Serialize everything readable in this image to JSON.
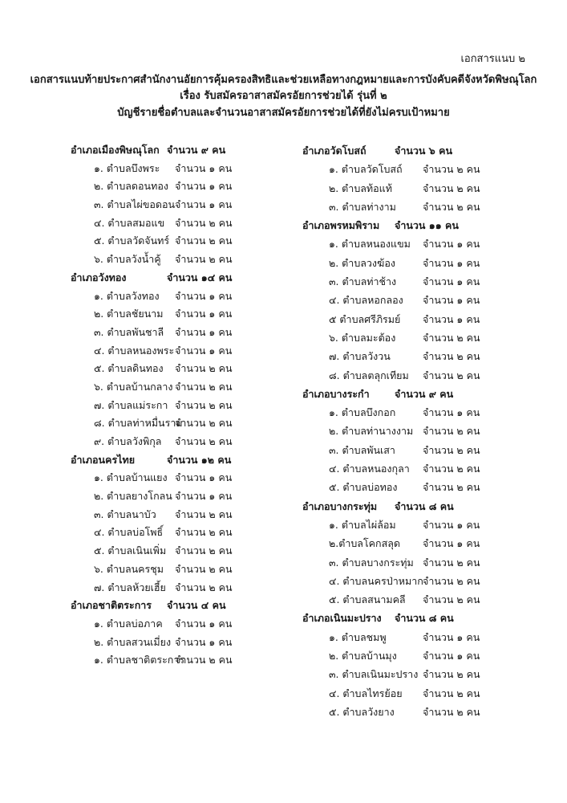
{
  "annex_label": "เอกสารแนบ ๒",
  "title_lines": [
    "เอกสารแนบท้ายประกาศสำนักงานอัยการคุ้มครองสิทธิและช่วยเหลือทางกฎหมายและการบังคับคดีจังหวัดพิษณุโลก",
    "เรื่อง รับสมัครอาสาสมัครอัยการช่วยได้ รุ่นที่ ๒",
    "บัญชีรายชื่อตำบลและจำนวนอาสาสมัครอัยการช่วยได้ที่ยังไม่ครบเป้าหมาย"
  ],
  "columns": [
    [
      {
        "district": "อำเภอเมืองพิษณุโลก",
        "count": "จำนวน ๙ คน",
        "subdistricts": [
          {
            "name": "๑. ตำบลบึงพระ",
            "count": "จำนวน ๑ คน"
          },
          {
            "name": "๒. ตำบลดอนทอง",
            "count": "จำนวน ๑ คน"
          },
          {
            "name": "๓. ตำบลไผ่ขอดอน",
            "count": "จำนวน ๑ คน"
          },
          {
            "name": "๔. ตำบลสมอแข",
            "count": "จำนวน ๒ คน"
          },
          {
            "name": "๕. ตำบลวัดจันทร์",
            "count": "จำนวน ๒ คน"
          },
          {
            "name": "๖. ตำบลวังน้ำคู้",
            "count": "จำนวน ๒ คน"
          }
        ]
      },
      {
        "district": "อำเภอวังทอง",
        "count": "จำนวน ๑๔ คน",
        "subdistricts": [
          {
            "name": "๑. ตำบลวังทอง",
            "count": "จำนวน ๑ คน"
          },
          {
            "name": "๒. ตำบลชัยนาม",
            "count": "จำนวน ๑ คน"
          },
          {
            "name": "๓. ตำบลพันชาลี",
            "count": "จำนวน ๑ คน"
          },
          {
            "name": "๔. ตำบลหนองพระ",
            "count": "จำนวน ๑ คน"
          },
          {
            "name": "๕. ตำบลดินทอง",
            "count": "จำนวน ๒ คน"
          },
          {
            "name": "๖. ตำบลบ้านกลาง",
            "count": "จำนวน ๒ คน"
          },
          {
            "name": "๗. ตำบลแม่ระกา",
            "count": "จำนวน ๒ คน"
          },
          {
            "name": "๘. ตำบลท่าหมื่นราม",
            "count": "จำนวน ๒ คน"
          },
          {
            "name": "๙. ตำบลวังพิกุล",
            "count": "จำนวน ๒ คน"
          }
        ]
      },
      {
        "district": "อำเภอนครไทย",
        "count": "จำนวน ๑๒ คน",
        "subdistricts": [
          {
            "name": "๑. ตำบลบ้านแยง",
            "count": "จำนวน ๑ คน"
          },
          {
            "name": "๒. ตำบลยางโกลน",
            "count": "จำนวน ๑ คน"
          },
          {
            "name": "๓. ตำบลนาบัว",
            "count": "จำนวน ๒ คน"
          },
          {
            "name": "๔. ตำบลบ่อโพธิ์",
            "count": "จำนวน ๒ คน"
          },
          {
            "name": "๕. ตำบลเนินเพิ่ม",
            "count": "จำนวน ๒ คน"
          },
          {
            "name": "๖. ตำบลนครชุม",
            "count": "จำนวน ๒ คน"
          },
          {
            "name": "๗. ตำบลห้วยเฮี้ย",
            "count": "จำนวน ๒ คน"
          }
        ]
      },
      {
        "district": "อำเภอชาติตระการ",
        "count": "จำนวน ๔ คน",
        "subdistricts": [
          {
            "name": "๑. ตำบลบ่อภาค",
            "count": "จำนวน ๑ คน"
          },
          {
            "name": "๒. ตำบลสวนเมี่ยง",
            "count": "จำนวน ๑ คน"
          },
          {
            "name": "๑. ตำบลชาติตระการ",
            "count": "จำนวน ๒ คน"
          }
        ]
      }
    ],
    [
      {
        "district": "อำเภอวัดโบสถ์",
        "count": "จำนวน ๖ คน",
        "subdistricts": [
          {
            "name": "๑. ตำบลวัดโบสถ์",
            "count": "จำนวน ๒ คน"
          },
          {
            "name": "๒. ตำบลท้อแท้",
            "count": "จำนวน ๒ คน"
          },
          {
            "name": "๓. ตำบลท่างาม",
            "count": "จำนวน ๒ คน"
          }
        ]
      },
      {
        "district": "อำเภอพรหมพิราม",
        "count": "จำนวน ๑๑ คน",
        "subdistricts": [
          {
            "name": "๑. ตำบลหนองแขม",
            "count": "จำนวน ๑ คน"
          },
          {
            "name": "๒. ตำบลวงฆ้อง",
            "count": "จำนวน ๑ คน"
          },
          {
            "name": "๓. ตำบลท่าช้าง",
            "count": "จำนวน ๑ คน"
          },
          {
            "name": "๔. ตำบลหอกลอง",
            "count": "จำนวน ๑ คน"
          },
          {
            "name": "๕ ตำบลศรีภิรมย์",
            "count": "จำนวน ๑ คน"
          },
          {
            "name": "๖. ตำบลมะต้อง",
            "count": "จำนวน ๒ คน"
          },
          {
            "name": "๗. ตำบลวังวน",
            "count": "จำนวน ๒ คน"
          },
          {
            "name": "๘. ตำบลตลุกเทียม",
            "count": "จำนวน ๒ คน"
          }
        ]
      },
      {
        "district": "อำเภอบางระกำ",
        "count": "จำนวน ๙ คน",
        "subdistricts": [
          {
            "name": "๑. ตำบลบึงกอก",
            "count": "จำนวน ๑ คน"
          },
          {
            "name": "๒. ตำบลท่านางงาม",
            "count": "จำนวน ๒ คน"
          },
          {
            "name": "๓. ตำบลพันเสา",
            "count": "จำนวน ๒ คน"
          },
          {
            "name": "๔. ตำบลหนองกุลา",
            "count": "จำนวน ๒ คน"
          },
          {
            "name": "๕. ตำบลบ่อทอง",
            "count": "จำนวน ๒ คน"
          }
        ]
      },
      {
        "district": "อำเภอบางกระทุ่ม",
        "count": "จำนวน ๘ คน",
        "subdistricts": [
          {
            "name": "๑. ตำบลไผ่ล้อม",
            "count": "จำนวน ๑ คน"
          },
          {
            "name": "๒.ตำบลโคกสลุด",
            "count": "จำนวน ๑ คน"
          },
          {
            "name": "๓. ตำบลบางกระทุ่ม",
            "count": "จำนวน ๒ คน"
          },
          {
            "name": "๔. ตำบลนครป่าหมาก",
            "count": "จำนวน ๒ คน"
          },
          {
            "name": "๕. ตำบลสนามคลี",
            "count": "จำนวน ๒ คน"
          }
        ]
      },
      {
        "district": "อำเภอเนินมะปราง",
        "count": "จำนวน ๘ คน",
        "subdistricts": [
          {
            "name": "๑. ตำบลชมพู",
            "count": "จำนวน ๑ คน"
          },
          {
            "name": "๒. ตำบลบ้านมุง",
            "count": "จำนวน ๑ คน"
          },
          {
            "name": "๓. ตำบลเนินมะปราง",
            "count": "จำนวน ๒ คน"
          },
          {
            "name": "๔. ตำบลไทรย้อย",
            "count": "จำนวน ๒ คน"
          },
          {
            "name": "๕. ตำบลวังยาง",
            "count": "จำนวน ๒ คน"
          }
        ]
      }
    ]
  ]
}
